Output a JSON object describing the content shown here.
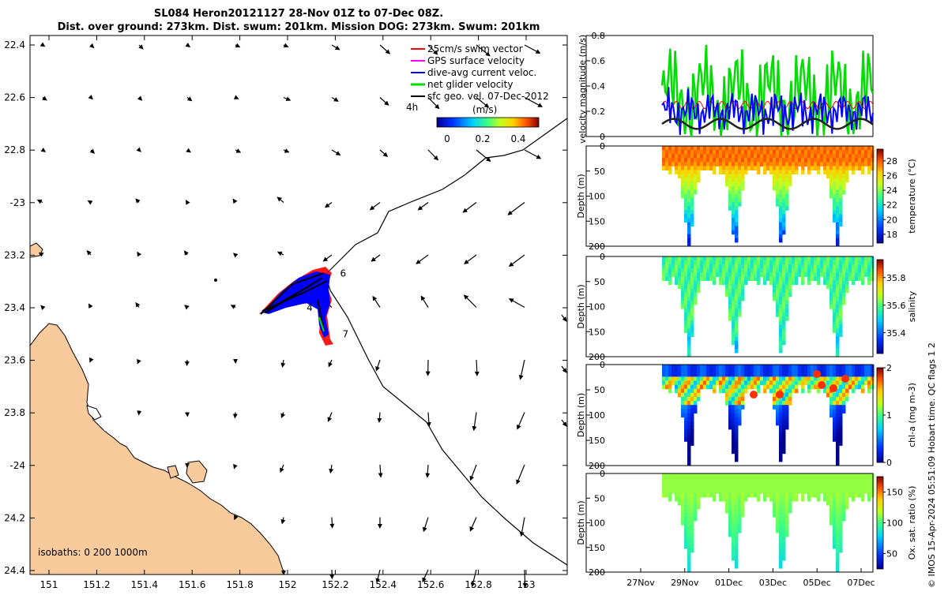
{
  "header": {
    "title_line1": "SL084 Heron20121127 28-Nov 01Z to 07-Dec 08Z.",
    "title_line2": "Dist. over ground: 273km. Dist. swum: 201km. Mission DOG: 273km. Swum: 201km"
  },
  "credit": "© IMOS 15-Apr-2024 05:51:09 Hobart time. QC flags 1  2",
  "colors": {
    "land": "#f9cb9c",
    "swim": "#ff0000",
    "gps": "#ff00ff",
    "dive_avg": "#0000ff",
    "net": "#00dd00",
    "geo": "#000000",
    "track_mean": "#222222"
  },
  "chart_data": [
    {
      "type": "map",
      "lon_ticks": [
        "151",
        "151.2",
        "151.4",
        "151.6",
        "151.8",
        "152",
        "152.2",
        "152.4",
        "152.6",
        "152.8",
        "153"
      ],
      "lat_ticks": [
        "22.4",
        "22.6",
        "22.8",
        "-23",
        "23.2",
        "23.4",
        "23.6",
        "23.8",
        "-24",
        "24.2",
        "24.4"
      ],
      "lon_range": [
        150.97,
        153.17
      ],
      "lat_range": [
        -24.4,
        -22.35
      ],
      "legend": [
        {
          "label": "25cm/s swim vector",
          "color": "#ff0000"
        },
        {
          "label": "GPS surface velocity",
          "color": "#ff00ff"
        },
        {
          "label": "dive-avg current veloc.",
          "color": "#0000ff"
        },
        {
          "label": "net glider velocity",
          "color": "#00dd00"
        },
        {
          "label": "sfc geo. vel. 07-Dec-2012",
          "color": "#000000"
        }
      ],
      "scale_label": "4h",
      "colorbar": {
        "label": "(m/s)",
        "ticks": [
          "0",
          "0.2",
          "0.4"
        ],
        "range": [
          -0.08,
          0.5
        ]
      },
      "isobaths_label": "isobaths: 0   200  1000m",
      "track_day_labels": [
        {
          "day": "4",
          "lon": 152.08,
          "lat": -23.4
        },
        {
          "day": "6",
          "lon": 152.22,
          "lat": -23.27
        },
        {
          "day": "7",
          "lon": 152.23,
          "lat": -23.5
        }
      ]
    },
    {
      "type": "line",
      "ylabel": "velocity magnitude (m/s)",
      "ylim": [
        0,
        0.8
      ],
      "y_ticks": [
        "0",
        "0.2",
        "0.4",
        "0.6",
        "0.8"
      ],
      "series": [
        {
          "name": "net glider velocity",
          "color": "#00dd00"
        },
        {
          "name": "dive-avg current veloc.",
          "color": "#0000ff"
        },
        {
          "name": "25cm/s swim vector",
          "color": "#ff0000"
        },
        {
          "name": "sfc geo. vel. 07-Dec-2012",
          "color": "#222222"
        }
      ]
    },
    {
      "type": "heatmap",
      "ylabel": "Depth (m)",
      "clabel": "temperature (°C)",
      "c_ticks": [
        "18",
        "20",
        "22",
        "24",
        "26",
        "28"
      ],
      "crange": [
        16.8,
        29.6
      ],
      "depth_ticks": [
        "0",
        "50",
        "100",
        "150",
        "200"
      ]
    },
    {
      "type": "heatmap",
      "ylabel": "Depth (m)",
      "clabel": "salinity",
      "c_ticks": [
        "35.4",
        "35.6",
        "35.8"
      ],
      "crange": [
        35.25,
        35.93
      ],
      "depth_ticks": [
        "0",
        "50",
        "100",
        "150",
        "200"
      ]
    },
    {
      "type": "heatmap",
      "ylabel": "Depth (m)",
      "clabel": "chl-a (mg m-3)",
      "c_ticks": [
        "0",
        "1",
        "2"
      ],
      "crange": [
        0,
        2
      ],
      "depth_ticks": [
        "0",
        "50",
        "100",
        "150",
        "200"
      ]
    },
    {
      "type": "heatmap",
      "ylabel": "Depth (m)",
      "clabel": "Ox. sat. ratio (%)",
      "c_ticks": [
        "50",
        "100",
        "150"
      ],
      "crange": [
        25,
        175
      ],
      "depth_ticks": [
        "0",
        "50",
        "100",
        "150",
        "200"
      ],
      "x_ticks": [
        "27Nov",
        "29Nov",
        "01Dec",
        "03Dec",
        "05Dec",
        "07Dec"
      ]
    }
  ]
}
